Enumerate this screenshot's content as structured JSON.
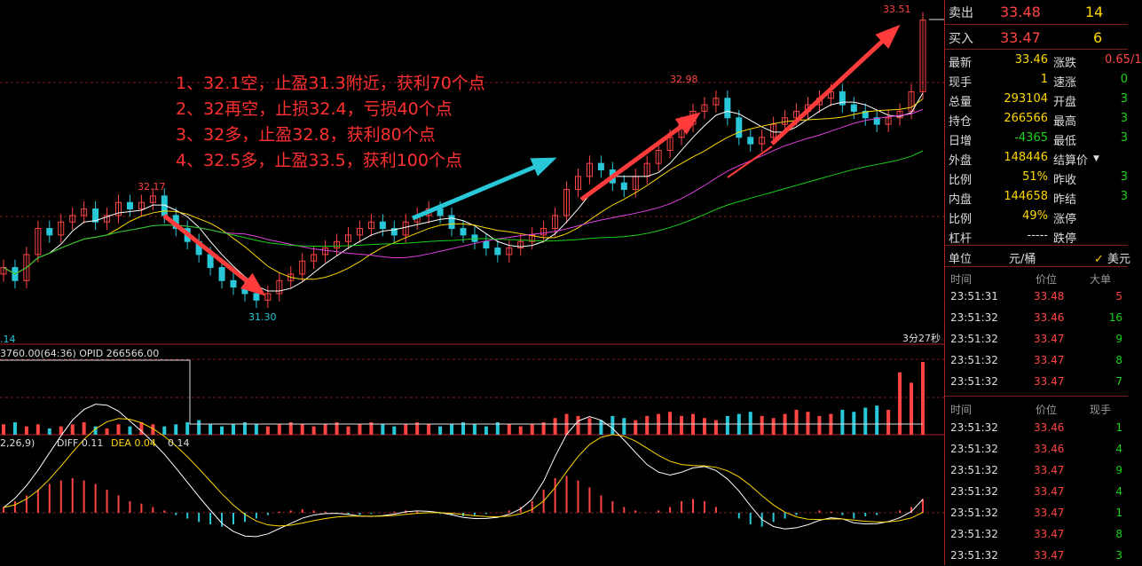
{
  "chart_data": {
    "type": "candlestick",
    "annotations": {
      "high_label": "33.51",
      "peak_mid": "32.98",
      "left_high": "32.17",
      "low_label": "31.30",
      "left_low": ".14",
      "timer": "3分27秒"
    },
    "strategy_notes": [
      "1、32.1空，止盈31.3附近，获利70个点",
      "2、32再空，止损32.4，亏损40个点",
      "3、32多，止盈32.8，获利80个点",
      "4、32.5多，止盈33.5，获利100个点"
    ],
    "volume_header": "3760.00(64:36)  OPID 266566.00",
    "macd_header": {
      "params": "2,26,9)",
      "diff_label": "DIFF 0.11",
      "dea_label": "DEA 0.04",
      "macd_value": "0.14"
    },
    "close": [
      31.6,
      31.5,
      31.7,
      31.9,
      31.85,
      31.95,
      32.0,
      32.05,
      31.95,
      32.0,
      32.1,
      32.05,
      32.1,
      32.15,
      32.0,
      31.9,
      31.8,
      31.7,
      31.6,
      31.5,
      31.45,
      31.4,
      31.35,
      31.4,
      31.5,
      31.55,
      31.65,
      31.7,
      31.75,
      31.8,
      31.85,
      31.9,
      31.95,
      31.9,
      31.85,
      31.95,
      32.0,
      32.05,
      32.0,
      31.9,
      31.85,
      31.8,
      31.75,
      31.7,
      31.75,
      31.8,
      31.85,
      31.9,
      32.0,
      32.2,
      32.3,
      32.4,
      32.35,
      32.25,
      32.2,
      32.3,
      32.4,
      32.5,
      32.6,
      32.7,
      32.8,
      32.85,
      32.9,
      32.75,
      32.6,
      32.55,
      32.6,
      32.7,
      32.75,
      32.8,
      32.85,
      32.9,
      32.95,
      32.85,
      32.8,
      32.75,
      32.7,
      32.75,
      32.8,
      32.95,
      33.5
    ],
    "volume": [
      5,
      6,
      4,
      5,
      3,
      4,
      5,
      6,
      4,
      3,
      5,
      4,
      6,
      5,
      4,
      5,
      6,
      7,
      5,
      4,
      5,
      6,
      5,
      4,
      5,
      6,
      5,
      4,
      5,
      6,
      4,
      5,
      6,
      5,
      4,
      5,
      6,
      5,
      4,
      5,
      6,
      5,
      4,
      6,
      5,
      4,
      5,
      6,
      8,
      10,
      9,
      8,
      7,
      9,
      8,
      7,
      9,
      10,
      11,
      9,
      10,
      8,
      7,
      9,
      10,
      11,
      9,
      8,
      10,
      12,
      11,
      9,
      10,
      12,
      11,
      13,
      14,
      12,
      30,
      25,
      35
    ],
    "macd_hist": [
      0.05,
      0.1,
      0.15,
      0.2,
      0.25,
      0.28,
      0.3,
      0.28,
      0.25,
      0.2,
      0.15,
      0.1,
      0.08,
      0.05,
      0.02,
      -0.02,
      -0.05,
      -0.08,
      -0.1,
      -0.12,
      -0.1,
      -0.08,
      -0.05,
      -0.02,
      0.01,
      0.02,
      0.03,
      0.02,
      0.01,
      0.0,
      -0.01,
      -0.02,
      -0.01,
      0.0,
      0.01,
      0.02,
      0.01,
      0.0,
      -0.01,
      -0.02,
      -0.03,
      -0.02,
      -0.01,
      0.0,
      0.02,
      0.05,
      0.1,
      0.2,
      0.3,
      0.32,
      0.28,
      0.22,
      0.15,
      0.1,
      0.05,
      0.02,
      0.0,
      0.02,
      0.05,
      0.1,
      0.12,
      0.1,
      0.05,
      0.0,
      -0.05,
      -0.1,
      -0.12,
      -0.08,
      -0.05,
      -0.02,
      0.0,
      0.02,
      0.01,
      -0.02,
      -0.05,
      -0.03,
      -0.02,
      0.0,
      0.02,
      0.05,
      0.12
    ]
  },
  "panel": {
    "sell": {
      "label": "卖出",
      "price": "33.48",
      "qty": "14"
    },
    "buy": {
      "label": "买入",
      "price": "33.47",
      "qty": "6"
    },
    "stats": [
      {
        "l1": "最新",
        "v1": "33.46",
        "l2": "涨跌",
        "v2": "0.65/1"
      },
      {
        "l1": "现手",
        "v1": "1",
        "l2": "速涨",
        "v2": "0"
      },
      {
        "l1": "总量",
        "v1": "293104",
        "l2": "开盘",
        "v2": "3"
      },
      {
        "l1": "持仓",
        "v1": "266566",
        "l2": "最高",
        "v2": "3"
      },
      {
        "l1": "日增",
        "v1": "-4365",
        "l2": "最低",
        "v2": "3"
      },
      {
        "l1": "外盘",
        "v1": "148446",
        "l2": "结算价",
        "v2": ""
      },
      {
        "l1": "比例",
        "v1": "51%",
        "l2": "昨收",
        "v2": "3"
      },
      {
        "l1": "内盘",
        "v1": "144658",
        "l2": "昨结",
        "v2": "3"
      },
      {
        "l1": "比例",
        "v1": "49%",
        "l2": "涨停",
        "v2": ""
      },
      {
        "l1": "杠杆",
        "v1": "-----",
        "l2": "跌停",
        "v2": ""
      }
    ],
    "unit": {
      "label": "单位",
      "value": "元/桶",
      "currency": "美元"
    },
    "big_header": {
      "time": "时间",
      "price": "价位",
      "vol": "大单"
    },
    "big_ticks": [
      {
        "time": "23:51:31",
        "price": "33.48",
        "vol": "5"
      },
      {
        "time": "23:51:32",
        "price": "33.46",
        "vol": "16"
      },
      {
        "time": "23:51:32",
        "price": "33.47",
        "vol": "9"
      },
      {
        "time": "23:51:32",
        "price": "33.47",
        "vol": "8"
      },
      {
        "time": "23:51:32",
        "price": "33.47",
        "vol": "7"
      }
    ],
    "tick_header": {
      "time": "时间",
      "price": "价位",
      "vol": "现手"
    },
    "ticks": [
      {
        "time": "23:51:32",
        "price": "33.46",
        "vol": "1"
      },
      {
        "time": "23:51:32",
        "price": "33.46",
        "vol": "4"
      },
      {
        "time": "23:51:32",
        "price": "33.47",
        "vol": "9"
      },
      {
        "time": "23:51:32",
        "price": "33.47",
        "vol": "4"
      },
      {
        "time": "23:51:32",
        "price": "33.47",
        "vol": "1"
      },
      {
        "time": "23:51:32",
        "price": "33.47",
        "vol": "8"
      },
      {
        "time": "23:51:32",
        "price": "33.47",
        "vol": "3"
      }
    ]
  }
}
